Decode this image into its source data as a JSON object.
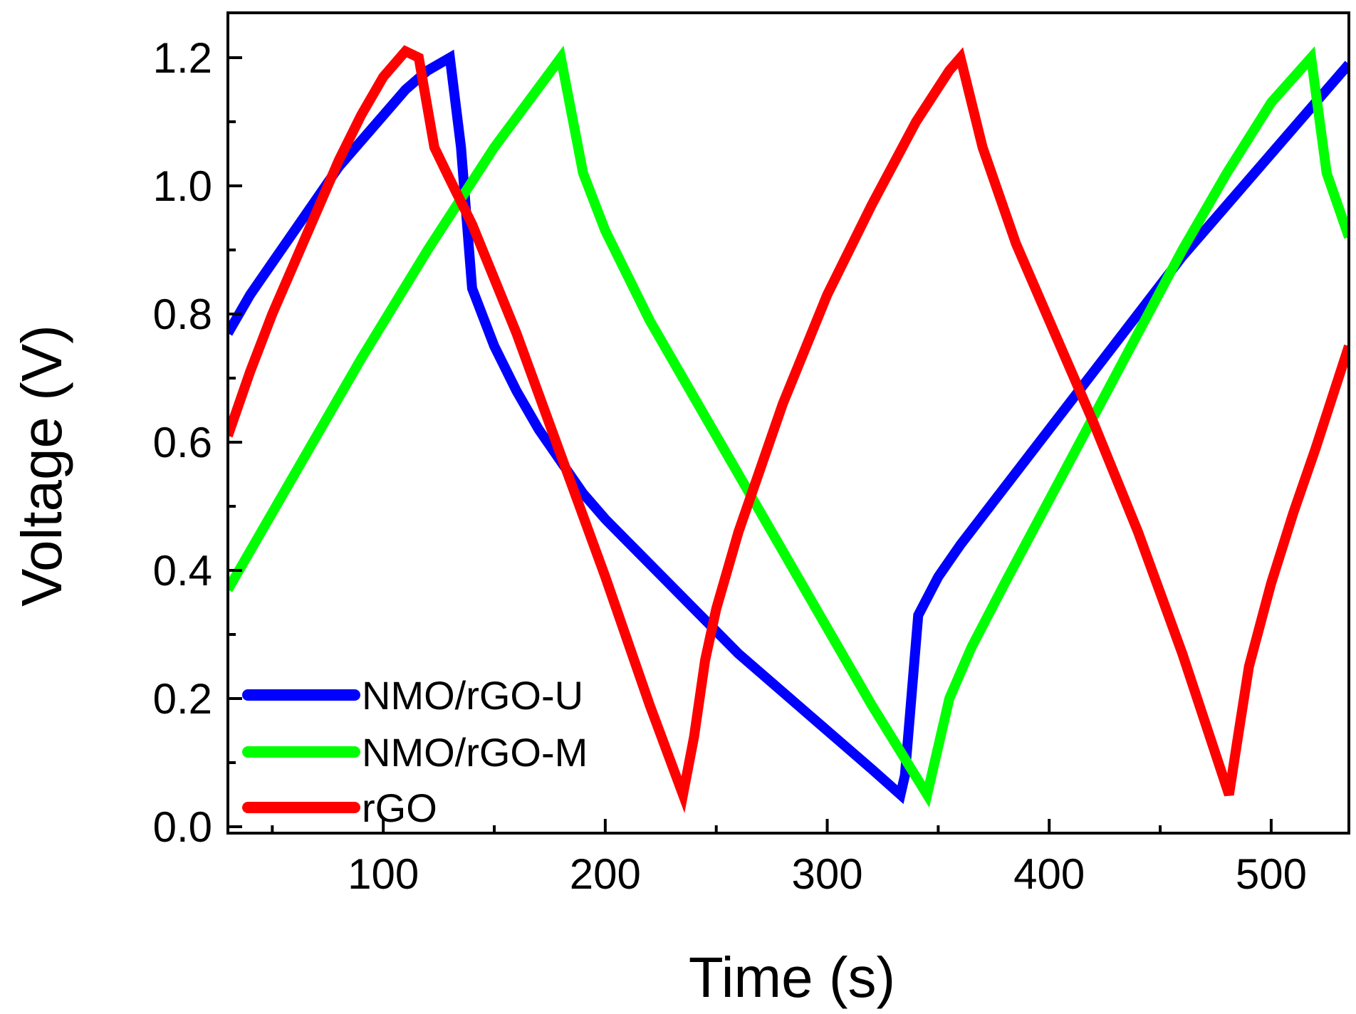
{
  "chart_data": {
    "type": "line",
    "title": "",
    "xlabel": "Time (s)",
    "ylabel": "Voltage (V)",
    "xlim": [
      30,
      535
    ],
    "ylim": [
      -0.01,
      1.27
    ],
    "xticks": [
      100,
      200,
      300,
      400,
      500
    ],
    "xtick_labels": [
      "100",
      "200",
      "300",
      "400",
      "500"
    ],
    "yticks": [
      0.0,
      0.2,
      0.4,
      0.6,
      0.8,
      1.0,
      1.2
    ],
    "ytick_labels": [
      "0.0",
      "0.2",
      "0.4",
      "0.6",
      "0.8",
      "1.0",
      "1.2"
    ],
    "grid": false,
    "legend_position": "bottom-left",
    "series": [
      {
        "name": "NMO/rGO-U",
        "color": "#0000ff",
        "x": [
          30,
          40,
          50,
          60,
          70,
          80,
          90,
          100,
          110,
          120,
          130,
          135,
          140,
          150,
          160,
          170,
          180,
          190,
          200,
          220,
          240,
          260,
          280,
          300,
          320,
          333,
          335,
          341,
          350,
          360,
          380,
          400,
          420,
          440,
          460,
          480,
          500,
          520,
          535
        ],
        "y": [
          0.77,
          0.83,
          0.88,
          0.93,
          0.98,
          1.03,
          1.07,
          1.11,
          1.15,
          1.18,
          1.2,
          1.06,
          0.84,
          0.75,
          0.68,
          0.62,
          0.57,
          0.52,
          0.48,
          0.41,
          0.34,
          0.27,
          0.21,
          0.15,
          0.09,
          0.05,
          0.08,
          0.33,
          0.39,
          0.44,
          0.53,
          0.62,
          0.71,
          0.8,
          0.89,
          0.97,
          1.05,
          1.13,
          1.19
        ]
      },
      {
        "name": "NMO/rGO-M",
        "color": "#00ff00",
        "x": [
          30,
          60,
          90,
          120,
          150,
          180,
          190,
          200,
          220,
          240,
          260,
          280,
          300,
          320,
          345,
          355,
          365,
          380,
          400,
          420,
          440,
          460,
          480,
          500,
          518,
          525,
          535
        ],
        "y": [
          0.37,
          0.55,
          0.73,
          0.9,
          1.06,
          1.2,
          1.02,
          0.93,
          0.79,
          0.67,
          0.55,
          0.43,
          0.31,
          0.19,
          0.05,
          0.2,
          0.28,
          0.38,
          0.51,
          0.64,
          0.77,
          0.9,
          1.02,
          1.13,
          1.2,
          1.02,
          0.92
        ]
      },
      {
        "name": "rGO",
        "color": "#ff0000",
        "x": [
          30,
          40,
          50,
          60,
          70,
          80,
          90,
          100,
          110,
          116,
          123,
          130,
          140,
          160,
          180,
          200,
          220,
          235,
          240,
          245,
          250,
          260,
          280,
          300,
          320,
          340,
          355,
          360,
          370,
          385,
          400,
          420,
          440,
          460,
          481,
          485,
          490,
          500,
          510,
          520,
          535
        ],
        "y": [
          0.61,
          0.71,
          0.8,
          0.88,
          0.96,
          1.04,
          1.11,
          1.17,
          1.21,
          1.2,
          1.06,
          1.01,
          0.94,
          0.77,
          0.58,
          0.39,
          0.19,
          0.05,
          0.14,
          0.26,
          0.34,
          0.46,
          0.66,
          0.83,
          0.97,
          1.1,
          1.18,
          1.2,
          1.06,
          0.91,
          0.79,
          0.63,
          0.46,
          0.27,
          0.05,
          0.14,
          0.25,
          0.38,
          0.49,
          0.59,
          0.75
        ]
      }
    ]
  }
}
